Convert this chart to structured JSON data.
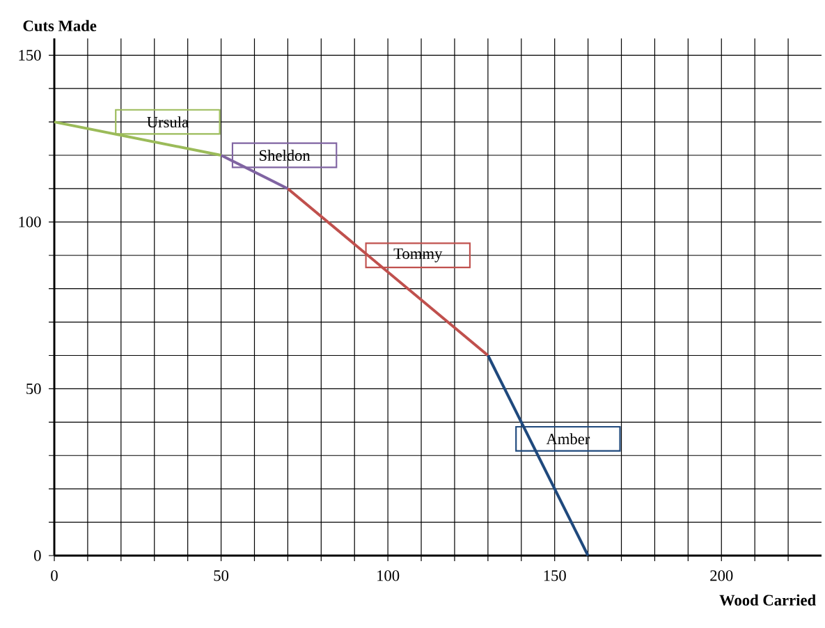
{
  "chart_data": {
    "type": "line",
    "xlabel": "Wood Carried",
    "ylabel": "Cuts Made",
    "xlim": [
      0,
      230
    ],
    "ylim": [
      0,
      155
    ],
    "xticks": [
      0,
      {
        "value": 10,
        "label": null
      },
      {
        "value": 20,
        "label": null
      },
      {
        "value": 30,
        "label": null
      },
      {
        "value": 40,
        "label": null
      },
      50,
      {
        "value": 60,
        "label": null
      },
      {
        "value": 70,
        "label": null
      },
      {
        "value": 80,
        "label": null
      },
      {
        "value": 90,
        "label": null
      },
      100,
      {
        "value": 110,
        "label": null
      },
      {
        "value": 120,
        "label": null
      },
      {
        "value": 130,
        "label": null
      },
      {
        "value": 140,
        "label": null
      },
      150,
      {
        "value": 160,
        "label": null
      },
      {
        "value": 170,
        "label": null
      },
      {
        "value": 180,
        "label": null
      },
      {
        "value": 190,
        "label": null
      },
      200,
      {
        "value": 210,
        "label": null
      },
      {
        "value": 220,
        "label": null
      }
    ],
    "yticks": [
      0,
      {
        "value": 10,
        "label": null
      },
      {
        "value": 20,
        "label": null
      },
      {
        "value": 30,
        "label": null
      },
      {
        "value": 40,
        "label": null
      },
      50,
      {
        "value": 60,
        "label": null
      },
      {
        "value": 70,
        "label": null
      },
      {
        "value": 80,
        "label": null
      },
      {
        "value": 90,
        "label": null
      },
      100,
      {
        "value": 110,
        "label": null
      },
      {
        "value": 120,
        "label": null
      },
      {
        "value": 130,
        "label": null
      },
      {
        "value": 140,
        "label": null
      },
      150
    ],
    "grid": true,
    "marker": "none",
    "line_style": "solid",
    "series": [
      {
        "name": "Ursula",
        "color": "#9bbb59",
        "x": [
          0,
          50
        ],
        "values": [
          130,
          120
        ]
      },
      {
        "name": "Sheldon",
        "color": "#8064a2",
        "x": [
          50,
          70
        ],
        "values": [
          120,
          110
        ]
      },
      {
        "name": "Tommy",
        "color": "#c0504d",
        "x": [
          70,
          130
        ],
        "values": [
          110,
          60
        ]
      },
      {
        "name": "Amber",
        "color": "#1f497d",
        "x": [
          130,
          160
        ],
        "values": [
          60,
          0
        ]
      }
    ]
  }
}
